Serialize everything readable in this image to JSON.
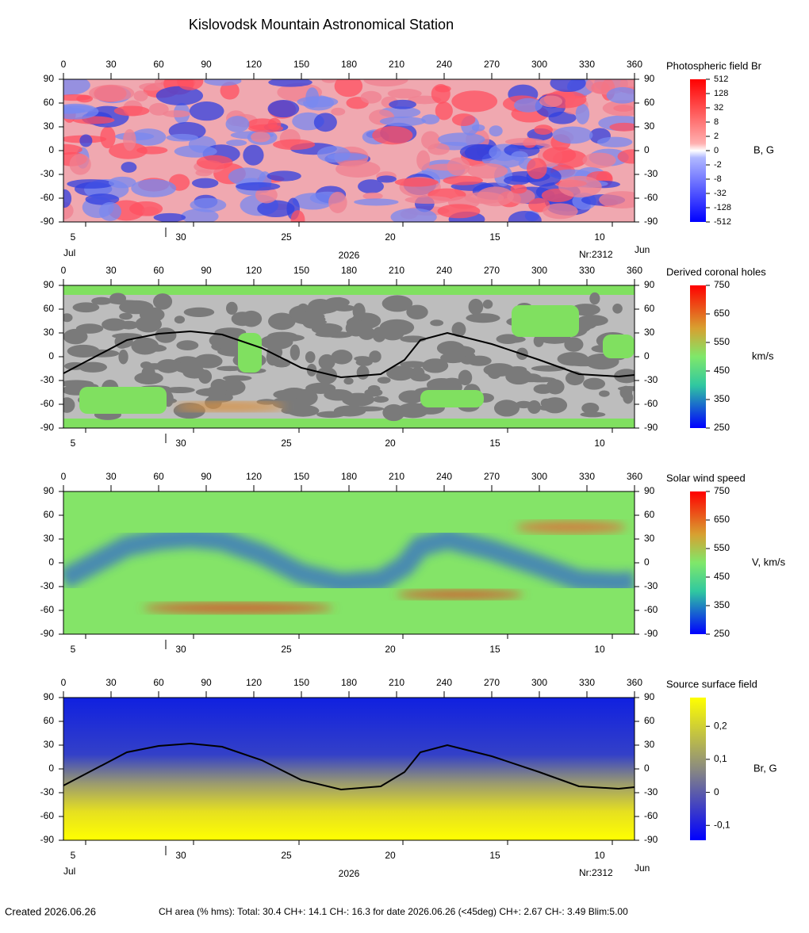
{
  "title": "Kislovodsk Mountain Astronomical Station",
  "chart_data": [
    {
      "type": "map",
      "legend_title": "Photospheric field Br",
      "colorbar_label": "B, G",
      "xlim": [
        0,
        360
      ],
      "xticks": [
        0,
        30,
        60,
        90,
        120,
        150,
        180,
        210,
        240,
        270,
        300,
        330,
        360
      ],
      "ylim": [
        -90,
        90
      ],
      "yticks": [
        90,
        60,
        30,
        0,
        -30,
        -60,
        -90
      ],
      "date_ticks": [
        {
          "value": 4,
          "label": "5"
        },
        {
          "value": 72,
          "label": "30"
        },
        {
          "value": 138.5,
          "label": "25"
        },
        {
          "value": 204,
          "label": "20"
        },
        {
          "value": 270,
          "label": "15"
        },
        {
          "value": 336,
          "label": "10"
        }
      ],
      "month_left": "Jul",
      "month_right": "Jun",
      "year": "2026",
      "rotation": "Nr:2312",
      "colorbar_scale": "log4-symmetric",
      "clim": [
        -512,
        512
      ],
      "colorbar_ticks": [
        512,
        128,
        32,
        8,
        2,
        0,
        -2,
        -8,
        -32,
        -128,
        -512
      ]
    },
    {
      "type": "map",
      "legend_title": "Derived coronal holes",
      "colorbar_label": "km/s",
      "xlim": [
        0,
        360
      ],
      "xticks": [
        0,
        30,
        60,
        90,
        120,
        150,
        180,
        210,
        240,
        270,
        300,
        330,
        360
      ],
      "ylim": [
        -90,
        90
      ],
      "yticks": [
        90,
        60,
        30,
        0,
        -30,
        -60,
        -90
      ],
      "date_ticks": [
        {
          "value": 4,
          "label": "5"
        },
        {
          "value": 72,
          "label": "30"
        },
        {
          "value": 138.5,
          "label": "25"
        },
        {
          "value": 204,
          "label": "20"
        },
        {
          "value": 270,
          "label": "15"
        },
        {
          "value": 336,
          "label": "10"
        }
      ],
      "colorbar_scale": "linear",
      "clim": [
        250,
        750
      ],
      "colorbar_ticks": [
        750,
        650,
        550,
        450,
        350,
        250
      ],
      "x": [
        0,
        40,
        60,
        80,
        100,
        125,
        150,
        175,
        200,
        215,
        225,
        242,
        270,
        300,
        325,
        350,
        360
      ],
      "values": [
        -21,
        21,
        29,
        32,
        28,
        11,
        -14,
        -26,
        -22,
        -4,
        21,
        30,
        16,
        -4,
        -22,
        -25,
        -23
      ]
    },
    {
      "type": "map",
      "legend_title": "Solar wind speed",
      "colorbar_label": "V, km/s",
      "xlim": [
        0,
        360
      ],
      "xticks": [
        0,
        30,
        60,
        90,
        120,
        150,
        180,
        210,
        240,
        270,
        300,
        330,
        360
      ],
      "ylim": [
        -90,
        90
      ],
      "yticks": [
        90,
        60,
        30,
        0,
        -30,
        -60,
        -90
      ],
      "date_ticks": [
        {
          "value": 4,
          "label": "5"
        },
        {
          "value": 72,
          "label": "30"
        },
        {
          "value": 138.5,
          "label": "25"
        },
        {
          "value": 204,
          "label": "20"
        },
        {
          "value": 270,
          "label": "15"
        },
        {
          "value": 336,
          "label": "10"
        }
      ],
      "colorbar_scale": "linear",
      "clim": [
        250,
        750
      ],
      "colorbar_ticks": [
        750,
        650,
        550,
        450,
        350,
        250
      ]
    },
    {
      "type": "map",
      "legend_title": "Source surface field",
      "colorbar_label": "Br, G",
      "xlim": [
        0,
        360
      ],
      "xticks": [
        0,
        30,
        60,
        90,
        120,
        150,
        180,
        210,
        240,
        270,
        300,
        330,
        360
      ],
      "ylim": [
        -90,
        90
      ],
      "yticks": [
        90,
        60,
        30,
        0,
        -30,
        -60,
        -90
      ],
      "date_ticks": [
        {
          "value": 4,
          "label": "5"
        },
        {
          "value": 72,
          "label": "30"
        },
        {
          "value": 138.5,
          "label": "25"
        },
        {
          "value": 204,
          "label": "20"
        },
        {
          "value": 270,
          "label": "15"
        },
        {
          "value": 336,
          "label": "10"
        }
      ],
      "month_left": "Jul",
      "month_right": "Jun",
      "year": "2026",
      "rotation": "Nr:2312",
      "colorbar_scale": "linear",
      "clim": [
        -0.145,
        0.287
      ],
      "colorbar_ticks": [
        {
          "value": 0.2,
          "label": "0,2"
        },
        {
          "value": 0.1,
          "label": "0,1"
        },
        0,
        {
          "value": -0.1,
          "label": "-0,1"
        }
      ],
      "x": [
        0,
        40,
        60,
        80,
        100,
        125,
        150,
        175,
        200,
        215,
        225,
        242,
        270,
        300,
        325,
        350,
        360
      ],
      "values": [
        -21,
        21,
        29,
        32,
        28,
        11,
        -14,
        -26,
        -22,
        -4,
        21,
        30,
        16,
        -4,
        -22,
        -25,
        -23
      ]
    }
  ],
  "footer": {
    "created": "Created  2026.06.26",
    "stats": "CH area (% hms): Total: 30.4 CH+: 14.1   CH-: 16.3 for date 2026.06.26 (<45deg) CH+: 2.67   CH-: 3.49 Blim:5.00"
  }
}
